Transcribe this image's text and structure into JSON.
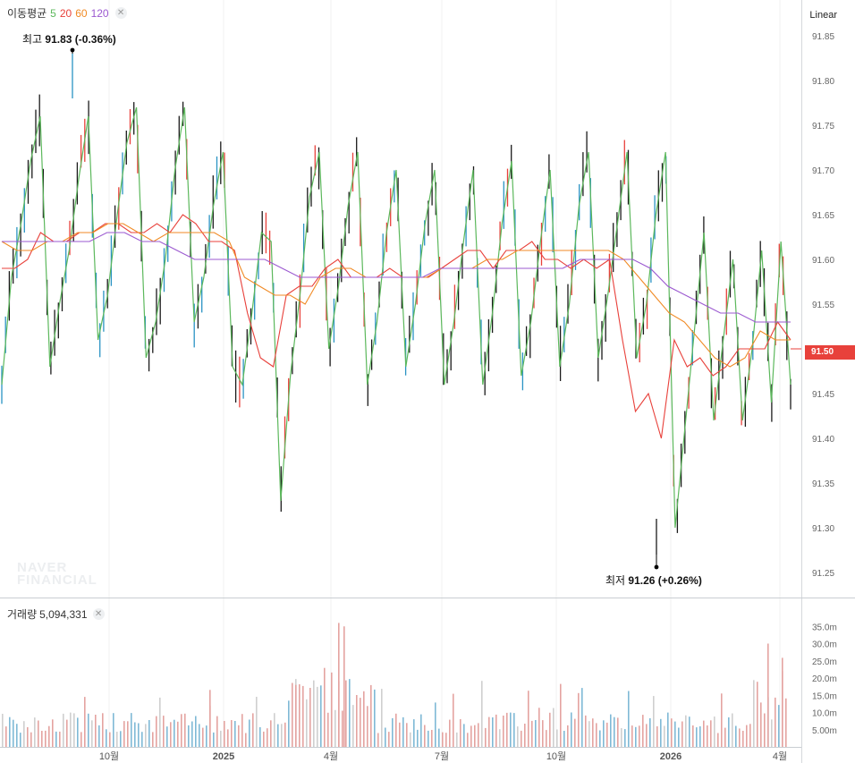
{
  "legend": {
    "title": "이동평균",
    "periods": [
      {
        "label": "5",
        "color": "#5cb85c"
      },
      {
        "label": "20",
        "color": "#e8413b"
      },
      {
        "label": "60",
        "color": "#f08a24"
      },
      {
        "label": "120",
        "color": "#9b59d0"
      }
    ],
    "close_icon": "close-icon"
  },
  "scale_mode": "Linear",
  "price_axis": {
    "ticks": [
      "91.85",
      "91.80",
      "91.75",
      "91.70",
      "91.65",
      "91.60",
      "91.55",
      "91.50",
      "91.45",
      "91.40",
      "91.35",
      "91.30",
      "91.25"
    ]
  },
  "current_price": "91.50",
  "high_annotation": {
    "label": "최고",
    "value": "91.83",
    "change": "(-0.36%)"
  },
  "low_annotation": {
    "label": "최저",
    "value": "91.26",
    "change": "(+0.26%)"
  },
  "watermark": {
    "line1": "NAVER",
    "line2": "FINANCIAL"
  },
  "volume": {
    "label": "거래량",
    "value": "5,094,331",
    "ticks": [
      "35.0m",
      "30.0m",
      "25.0m",
      "20.0m",
      "15.0m",
      "10.0m",
      "5.00m"
    ]
  },
  "x_axis": {
    "ticks": [
      "10월",
      "2025",
      "4월",
      "7월",
      "10월",
      "2026",
      "4월"
    ]
  },
  "colors": {
    "up": "#e8413b",
    "down": "#2a93c4",
    "ma5": "#5cb85c",
    "ma20": "#e8413b",
    "ma60": "#f08a24",
    "ma120": "#9b59d0",
    "grid": "#f0f0f0"
  },
  "chart_data": {
    "type": "line",
    "title": "",
    "price_range": [
      91.23,
      91.87
    ],
    "volume_range": [
      0,
      38
    ],
    "high": 91.83,
    "low": 91.26,
    "x_tick_labels": [
      "10월",
      "2025",
      "4월",
      "7월",
      "10월",
      "2026",
      "4월"
    ],
    "series": [
      {
        "name": "5",
        "values": [
          91.46,
          91.58,
          91.64,
          91.71,
          91.76,
          91.48,
          91.55,
          91.61,
          91.69,
          91.76,
          91.51,
          91.56,
          91.65,
          91.73,
          91.77,
          91.49,
          91.53,
          91.6,
          91.7,
          91.77,
          91.53,
          91.58,
          91.66,
          91.72,
          91.48,
          91.46,
          91.54,
          91.63,
          91.62,
          91.33,
          91.47,
          91.56,
          91.67,
          91.72,
          91.5,
          91.57,
          91.66,
          91.72,
          91.46,
          91.53,
          91.63,
          91.7,
          91.48,
          91.55,
          91.64,
          91.7,
          91.46,
          91.53,
          91.62,
          91.7,
          91.46,
          91.54,
          91.64,
          91.71,
          91.47,
          91.53,
          91.62,
          91.7,
          91.48,
          91.55,
          91.66,
          91.72,
          91.49,
          91.56,
          91.64,
          91.72,
          91.49,
          91.55,
          91.65,
          91.72,
          91.3,
          91.41,
          91.52,
          91.63,
          91.42,
          91.51,
          91.6,
          91.42,
          91.5,
          91.61,
          91.44,
          91.62,
          91.46
        ]
      },
      {
        "name": "20",
        "values": [
          91.59,
          91.59,
          91.6,
          91.63,
          91.62,
          91.62,
          91.63,
          91.63,
          91.64,
          91.64,
          91.63,
          91.63,
          91.64,
          91.63,
          91.65,
          91.64,
          91.62,
          91.62,
          91.61,
          91.54,
          91.49,
          91.48,
          91.56,
          91.57,
          91.57,
          91.59,
          91.6,
          91.58,
          91.58,
          91.58,
          91.59,
          91.58,
          91.58,
          91.58,
          91.59,
          91.6,
          91.61,
          91.61,
          91.59,
          91.61,
          91.61,
          91.62,
          91.6,
          91.6,
          91.59,
          91.6,
          91.59,
          91.6,
          91.51,
          91.43,
          91.45,
          91.4,
          91.51,
          91.48,
          91.49,
          91.47,
          91.48,
          91.5,
          91.5,
          91.5,
          91.53,
          91.51
        ]
      },
      {
        "name": "60",
        "values": [
          91.62,
          91.61,
          91.61,
          91.62,
          91.62,
          91.63,
          91.63,
          91.64,
          91.64,
          91.63,
          91.62,
          91.63,
          91.63,
          91.63,
          91.63,
          91.62,
          91.58,
          91.57,
          91.56,
          91.56,
          91.55,
          91.58,
          91.59,
          91.59,
          91.58,
          91.58,
          91.58,
          91.58,
          91.58,
          91.59,
          91.59,
          91.59,
          91.6,
          91.6,
          91.61,
          91.61,
          91.61,
          91.61,
          91.61,
          91.61,
          91.61,
          91.6,
          91.58,
          91.56,
          91.54,
          91.53,
          91.51,
          91.49,
          91.48,
          91.49,
          91.52,
          91.51,
          91.51
        ]
      },
      {
        "name": "120",
        "values": [
          91.62,
          91.62,
          91.62,
          91.62,
          91.62,
          91.62,
          91.63,
          91.63,
          91.62,
          91.62,
          91.61,
          91.6,
          91.6,
          91.6,
          91.6,
          91.6,
          91.59,
          91.58,
          91.58,
          91.58,
          91.58,
          91.58,
          91.58,
          91.58,
          91.58,
          91.59,
          91.59,
          91.59,
          91.59,
          91.59,
          91.59,
          91.59,
          91.59,
          91.6,
          91.6,
          91.6,
          91.6,
          91.59,
          91.57,
          91.56,
          91.55,
          91.54,
          91.54,
          91.53,
          91.53,
          91.53
        ]
      }
    ]
  }
}
